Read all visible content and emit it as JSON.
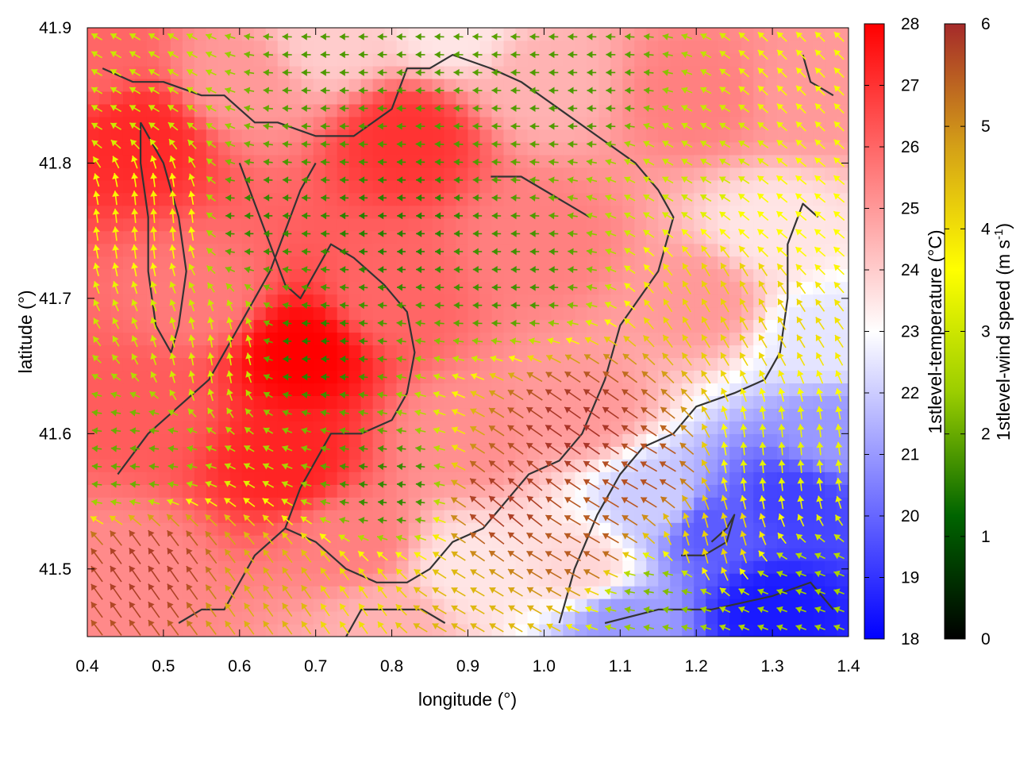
{
  "chart_data": {
    "type": "heatmap",
    "subtype": "temperature field with wind-speed vector arrows and coastline contours",
    "title": "",
    "xlabel": "longitude (°)",
    "ylabel": "latitude (°)",
    "xlim": [
      0.4,
      1.4
    ],
    "ylim": [
      41.45,
      41.9
    ],
    "xticks": [
      0.4,
      0.5,
      0.6,
      0.7,
      0.8,
      0.9,
      1.0,
      1.1,
      1.2,
      1.3,
      1.4
    ],
    "xtick_labels": [
      "0.4",
      "0.5",
      "0.6",
      "0.7",
      "0.8",
      "0.9",
      "1.0",
      "1.1",
      "1.2",
      "1.3",
      "1.4"
    ],
    "yticks": [
      41.5,
      41.6,
      41.7,
      41.8,
      41.9
    ],
    "ytick_labels": [
      "41.5",
      "41.6",
      "41.7",
      "41.8",
      "41.9"
    ],
    "grid": false,
    "temperature_colorbar": {
      "label": "1stlevel-temperature (°C)",
      "range": [
        18,
        28
      ],
      "ticks": [
        18,
        19,
        20,
        21,
        22,
        23,
        24,
        25,
        26,
        27,
        28
      ],
      "tick_labels": [
        "18",
        "19",
        "20",
        "21",
        "22",
        "23",
        "24",
        "25",
        "26",
        "27",
        "28"
      ],
      "colors": [
        "#0000ff",
        "#ffffff",
        "#ff0000"
      ]
    },
    "wind_colorbar": {
      "label_main": "1stlevel-wind speed (m s",
      "label_sup": "-1",
      "label_end": ")",
      "range": [
        0,
        6
      ],
      "ticks": [
        0,
        1,
        2,
        3,
        4,
        5,
        6
      ],
      "tick_labels": [
        "0",
        "1",
        "2",
        "3",
        "4",
        "5",
        "6"
      ],
      "colors": [
        "#000000",
        "#006400",
        "#9acd00",
        "#ffff00",
        "#d4a017",
        "#a52a2a"
      ]
    },
    "temperature_field": [
      {
        "lon": 0.4,
        "lat": 41.88,
        "t": 26.0
      },
      {
        "lon": 0.47,
        "lat": 41.82,
        "t": 27.2
      },
      {
        "lon": 0.68,
        "lat": 41.66,
        "t": 28.0
      },
      {
        "lon": 0.66,
        "lat": 41.58,
        "t": 27.3
      },
      {
        "lon": 0.82,
        "lat": 41.82,
        "t": 27.0
      },
      {
        "lon": 0.6,
        "lat": 41.86,
        "t": 25.0
      },
      {
        "lon": 0.72,
        "lat": 41.89,
        "t": 24.0
      },
      {
        "lon": 0.88,
        "lat": 41.9,
        "t": 23.5
      },
      {
        "lon": 1.0,
        "lat": 41.86,
        "t": 24.5
      },
      {
        "lon": 1.2,
        "lat": 41.85,
        "t": 25.5
      },
      {
        "lon": 1.35,
        "lat": 41.85,
        "t": 25.0
      },
      {
        "lon": 1.3,
        "lat": 41.75,
        "t": 23.5
      },
      {
        "lon": 1.37,
        "lat": 41.67,
        "t": 22.5
      },
      {
        "lon": 1.2,
        "lat": 41.7,
        "t": 25.0
      },
      {
        "lon": 1.0,
        "lat": 41.74,
        "t": 25.5
      },
      {
        "lon": 1.05,
        "lat": 41.62,
        "t": 25.0
      },
      {
        "lon": 0.9,
        "lat": 41.6,
        "t": 25.2
      },
      {
        "lon": 0.9,
        "lat": 41.5,
        "t": 23.5
      },
      {
        "lon": 1.05,
        "lat": 41.5,
        "t": 23.8
      },
      {
        "lon": 1.15,
        "lat": 41.55,
        "t": 22.0
      },
      {
        "lon": 1.22,
        "lat": 41.53,
        "t": 19.8
      },
      {
        "lon": 1.33,
        "lat": 41.55,
        "t": 19.3
      },
      {
        "lon": 1.3,
        "lat": 41.47,
        "t": 18.5
      },
      {
        "lon": 1.1,
        "lat": 41.46,
        "t": 21.0
      },
      {
        "lon": 1.38,
        "lat": 41.6,
        "t": 21.0
      },
      {
        "lon": 0.45,
        "lat": 41.5,
        "t": 25.3
      },
      {
        "lon": 0.55,
        "lat": 41.7,
        "t": 25.6
      },
      {
        "lon": 0.75,
        "lat": 41.52,
        "t": 25.5
      },
      {
        "lon": 0.8,
        "lat": 41.7,
        "t": 26.0
      },
      {
        "lon": 0.48,
        "lat": 41.62,
        "t": 26.2
      },
      {
        "lon": 0.8,
        "lat": 41.46,
        "t": 24.5
      }
    ],
    "wind_field": [
      {
        "lon": 0.68,
        "lat": 41.66,
        "speed": 1.5,
        "dir_deg": 180
      },
      {
        "lon": 0.8,
        "lat": 41.75,
        "speed": 1.5,
        "dir_deg": 180
      },
      {
        "lon": 0.95,
        "lat": 41.72,
        "speed": 1.7,
        "dir_deg": 180
      },
      {
        "lon": 0.75,
        "lat": 41.86,
        "speed": 1.8,
        "dir_deg": 180
      },
      {
        "lon": 1.05,
        "lat": 41.85,
        "speed": 1.8,
        "dir_deg": 180
      },
      {
        "lon": 0.62,
        "lat": 41.76,
        "speed": 1.6,
        "dir_deg": 180
      },
      {
        "lon": 0.5,
        "lat": 41.76,
        "speed": 3.8,
        "dir_deg": 95
      },
      {
        "lon": 0.58,
        "lat": 41.66,
        "speed": 3.2,
        "dir_deg": 100
      },
      {
        "lon": 0.45,
        "lat": 41.58,
        "speed": 2.0,
        "dir_deg": 175
      },
      {
        "lon": 0.48,
        "lat": 41.5,
        "speed": 5.8,
        "dir_deg": 125
      },
      {
        "lon": 0.65,
        "lat": 41.48,
        "speed": 4.6,
        "dir_deg": 125
      },
      {
        "lon": 0.95,
        "lat": 41.55,
        "speed": 5.8,
        "dir_deg": 140
      },
      {
        "lon": 1.05,
        "lat": 41.6,
        "speed": 5.9,
        "dir_deg": 145
      },
      {
        "lon": 1.12,
        "lat": 41.57,
        "speed": 5.6,
        "dir_deg": 150
      },
      {
        "lon": 1.05,
        "lat": 41.52,
        "speed": 5.5,
        "dir_deg": 150
      },
      {
        "lon": 1.22,
        "lat": 41.52,
        "speed": 4.2,
        "dir_deg": 105
      },
      {
        "lon": 1.3,
        "lat": 41.58,
        "speed": 3.3,
        "dir_deg": 95
      },
      {
        "lon": 1.25,
        "lat": 41.7,
        "speed": 4.2,
        "dir_deg": 120
      },
      {
        "lon": 1.32,
        "lat": 41.76,
        "speed": 3.6,
        "dir_deg": 140
      },
      {
        "lon": 1.2,
        "lat": 41.8,
        "speed": 3.0,
        "dir_deg": 150
      },
      {
        "lon": 1.15,
        "lat": 41.48,
        "speed": 2.2,
        "dir_deg": 170
      },
      {
        "lon": 1.33,
        "lat": 41.48,
        "speed": 2.5,
        "dir_deg": 160
      },
      {
        "lon": 0.8,
        "lat": 41.56,
        "speed": 1.6,
        "dir_deg": 175
      },
      {
        "lon": 0.75,
        "lat": 41.47,
        "speed": 4.0,
        "dir_deg": 125
      },
      {
        "lon": 0.88,
        "lat": 41.46,
        "speed": 4.5,
        "dir_deg": 150
      },
      {
        "lon": 1.37,
        "lat": 41.86,
        "speed": 3.5,
        "dir_deg": 135
      },
      {
        "lon": 0.42,
        "lat": 41.86,
        "speed": 3.0,
        "dir_deg": 150
      }
    ],
    "coastline_contours": [
      [
        [
          0.42,
          41.87
        ],
        [
          0.46,
          41.86
        ],
        [
          0.5,
          41.86
        ],
        [
          0.55,
          41.85
        ],
        [
          0.58,
          41.85
        ],
        [
          0.6,
          41.84
        ],
        [
          0.62,
          41.83
        ],
        [
          0.65,
          41.83
        ],
        [
          0.7,
          41.82
        ],
        [
          0.75,
          41.82
        ],
        [
          0.8,
          41.84
        ],
        [
          0.82,
          41.87
        ],
        [
          0.85,
          41.87
        ],
        [
          0.88,
          41.88
        ],
        [
          0.93,
          41.87
        ],
        [
          0.97,
          41.86
        ],
        [
          1.02,
          41.84
        ],
        [
          1.07,
          41.82
        ],
        [
          1.12,
          41.8
        ],
        [
          1.15,
          41.78
        ],
        [
          1.17,
          41.76
        ],
        [
          1.15,
          41.72
        ],
        [
          1.1,
          41.68
        ],
        [
          1.08,
          41.64
        ],
        [
          1.05,
          41.6
        ],
        [
          1.02,
          41.58
        ],
        [
          0.98,
          41.57
        ],
        [
          0.95,
          41.55
        ],
        [
          0.92,
          41.53
        ],
        [
          0.88,
          41.52
        ],
        [
          0.85,
          41.5
        ],
        [
          0.82,
          41.49
        ],
        [
          0.78,
          41.49
        ],
        [
          0.74,
          41.5
        ],
        [
          0.7,
          41.52
        ],
        [
          0.66,
          41.53
        ],
        [
          0.62,
          41.51
        ],
        [
          0.6,
          41.49
        ],
        [
          0.58,
          41.47
        ],
        [
          0.55,
          41.47
        ],
        [
          0.52,
          41.46
        ]
      ],
      [
        [
          0.47,
          41.83
        ],
        [
          0.5,
          41.8
        ],
        [
          0.52,
          41.76
        ],
        [
          0.53,
          41.72
        ],
        [
          0.52,
          41.68
        ],
        [
          0.51,
          41.66
        ],
        [
          0.49,
          41.68
        ],
        [
          0.48,
          41.72
        ],
        [
          0.48,
          41.76
        ],
        [
          0.47,
          41.8
        ],
        [
          0.47,
          41.83
        ]
      ],
      [
        [
          0.6,
          41.8
        ],
        [
          0.62,
          41.77
        ],
        [
          0.64,
          41.74
        ],
        [
          0.66,
          41.71
        ],
        [
          0.68,
          41.7
        ],
        [
          0.7,
          41.72
        ],
        [
          0.72,
          41.74
        ],
        [
          0.75,
          41.73
        ],
        [
          0.79,
          41.71
        ],
        [
          0.82,
          41.69
        ],
        [
          0.83,
          41.66
        ],
        [
          0.82,
          41.63
        ],
        [
          0.8,
          41.61
        ],
        [
          0.76,
          41.6
        ],
        [
          0.72,
          41.6
        ],
        [
          0.7,
          41.58
        ],
        [
          0.68,
          41.56
        ],
        [
          0.66,
          41.53
        ]
      ],
      [
        [
          0.44,
          41.57
        ],
        [
          0.48,
          41.6
        ],
        [
          0.52,
          41.62
        ],
        [
          0.56,
          41.64
        ],
        [
          0.58,
          41.66
        ],
        [
          0.6,
          41.68
        ],
        [
          0.62,
          41.7
        ],
        [
          0.64,
          41.72
        ],
        [
          0.66,
          41.75
        ],
        [
          0.68,
          41.78
        ],
        [
          0.7,
          41.8
        ]
      ],
      [
        [
          1.02,
          41.46
        ],
        [
          1.04,
          41.5
        ],
        [
          1.07,
          41.54
        ],
        [
          1.1,
          41.57
        ],
        [
          1.13,
          41.59
        ],
        [
          1.17,
          41.6
        ],
        [
          1.2,
          41.62
        ],
        [
          1.25,
          41.63
        ],
        [
          1.29,
          41.64
        ],
        [
          1.31,
          41.66
        ],
        [
          1.32,
          41.7
        ],
        [
          1.32,
          41.74
        ],
        [
          1.34,
          41.77
        ],
        [
          1.36,
          41.76
        ]
      ],
      [
        [
          0.93,
          41.79
        ],
        [
          0.97,
          41.79
        ],
        [
          1.0,
          41.78
        ],
        [
          1.03,
          41.77
        ],
        [
          1.06,
          41.76
        ]
      ],
      [
        [
          1.18,
          41.51
        ],
        [
          1.21,
          41.51
        ],
        [
          1.24,
          41.52
        ],
        [
          1.25,
          41.54
        ],
        [
          1.24,
          41.53
        ],
        [
          1.22,
          41.52
        ]
      ],
      [
        [
          1.08,
          41.46
        ],
        [
          1.15,
          41.47
        ],
        [
          1.22,
          41.47
        ],
        [
          1.3,
          41.48
        ],
        [
          1.35,
          41.49
        ],
        [
          1.38,
          41.47
        ]
      ],
      [
        [
          0.74,
          41.45
        ],
        [
          0.76,
          41.47
        ],
        [
          0.8,
          41.47
        ],
        [
          0.84,
          41.47
        ],
        [
          0.87,
          41.46
        ]
      ],
      [
        [
          1.34,
          41.88
        ],
        [
          1.35,
          41.86
        ],
        [
          1.38,
          41.85
        ]
      ]
    ]
  }
}
